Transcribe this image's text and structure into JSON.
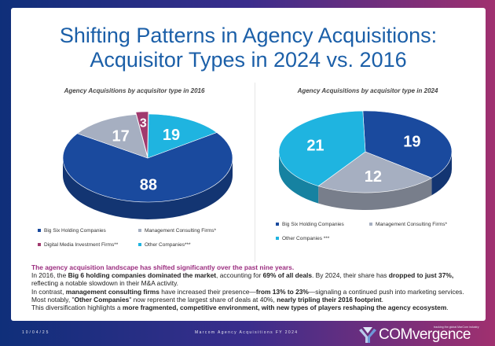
{
  "title": {
    "line1": "Shifting Patterns in Agency Acquisitions:",
    "line2": "Acquisitor Types in 2024 vs. 2016"
  },
  "colors": {
    "big_six": "#1a4a9e",
    "consulting": "#a6afc1",
    "digital_media": "#a13a6e",
    "other": "#1fb4e0"
  },
  "chart_data": [
    {
      "type": "pie",
      "title": "Agency Acquisitions by acquisitor type in 2016",
      "categories": [
        "Big Six Holding Companies",
        "Management Consulting Firms*",
        "Digital Media Investment Firms**",
        "Other Companies***"
      ],
      "values": [
        88,
        17,
        3,
        19
      ],
      "colors": [
        "#1a4a9e",
        "#a6afc1",
        "#a13a6e",
        "#1fb4e0"
      ],
      "legend_position": "bottom"
    },
    {
      "type": "pie",
      "title": "Agency Acquisitions by acquisitor type in 2024",
      "categories": [
        "Big Six Holding Companies",
        "Management Consulting Firms*",
        "Other Companies ***"
      ],
      "values": [
        19,
        12,
        21
      ],
      "colors": [
        "#1a4a9e",
        "#a6afc1",
        "#1fb4e0"
      ],
      "legend_position": "bottom"
    }
  ],
  "text": {
    "lead": "The agency acquisition landscape has shifted significantly over the past nine years.",
    "p1a": "In 2016, the ",
    "p1b": "Big 6 holding companies dominated the market",
    "p1c": ", accounting for ",
    "p1d": "69% of all deals",
    "p1e": ". By 2024, their share has ",
    "p1f": "dropped to just 37%,",
    "p1g": " reflecting a notable slowdown in their M&A activity.",
    "p2a": "In contrast, ",
    "p2b": "management consulting firms",
    "p2c": " have increased their presence—",
    "p2d": "from 13% to 23%",
    "p2e": "—signaling a continued push into marketing services.",
    "p3a": "Most notably, \"",
    "p3b": "Other Companies",
    "p3c": "\" now represent the largest share of deals at 40%, ",
    "p3d": "nearly tripling their 2016 footprint",
    "p3e": ".",
    "p4a": "This diversification highlights a ",
    "p4b": "more fragmented, competitive environment, with new types of players reshaping the agency ecosystem",
    "p4c": "."
  },
  "footer": {
    "date": "10/04/25",
    "center": "Marcom Agency Acquisitions FY 2024",
    "logo": "COMvergence",
    "tagline": "tracking the global MarCom industry"
  },
  "logo_icon": "comvergence-logo-icon"
}
